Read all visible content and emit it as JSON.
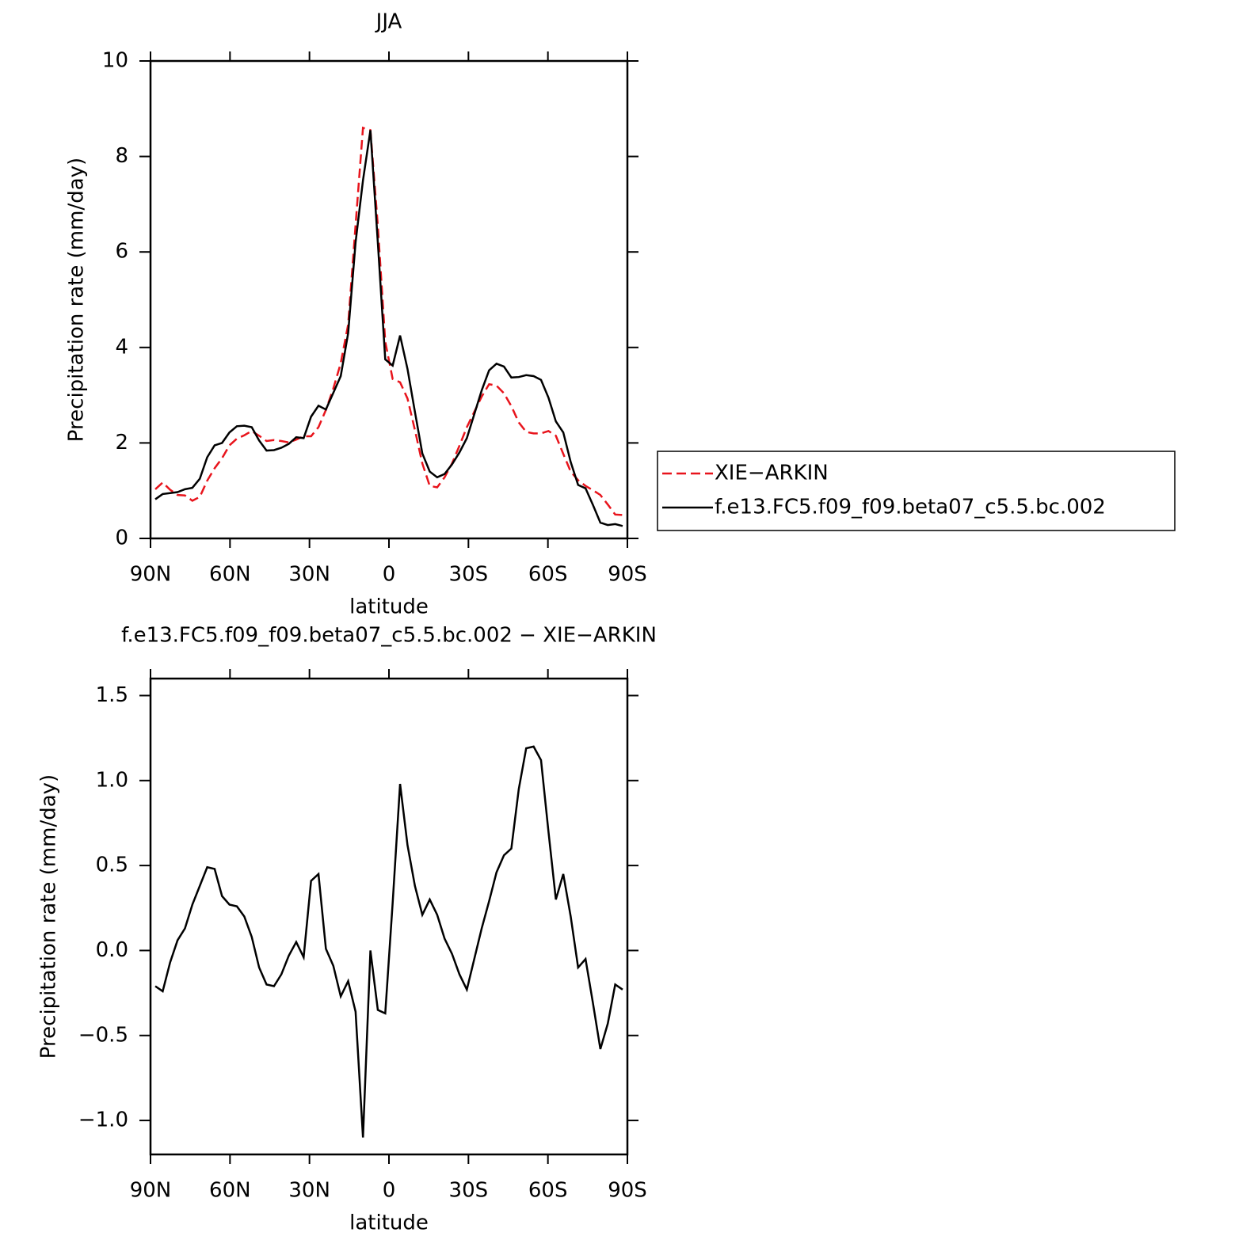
{
  "chart_data": [
    {
      "type": "line",
      "title": "JJA",
      "xlabel": "latitude",
      "ylabel": "Precipitation rate (mm/day)",
      "x": [
        88.2,
        85.4,
        82.6,
        79.8,
        77.0,
        74.2,
        71.4,
        68.6,
        65.8,
        63.0,
        60.2,
        57.4,
        54.6,
        51.8,
        49.0,
        46.2,
        43.4,
        40.6,
        37.8,
        35.0,
        32.2,
        29.4,
        26.6,
        23.8,
        21.0,
        18.2,
        15.4,
        12.6,
        9.8,
        7.0,
        4.2,
        1.4,
        -1.4,
        -4.2,
        -7.0,
        -9.8,
        -12.6,
        -15.4,
        -18.2,
        -21.0,
        -23.8,
        -26.6,
        -29.4,
        -32.2,
        -35.0,
        -37.8,
        -40.6,
        -43.4,
        -46.2,
        -49.0,
        -51.8,
        -54.6,
        -57.4,
        -60.2,
        -63.0,
        -65.8,
        -68.6,
        -71.4,
        -74.2,
        -77.0,
        -79.8,
        -82.6,
        -85.4,
        -88.2
      ],
      "series": [
        {
          "name": "XIE−ARKIN",
          "color": "#e8141c",
          "linestyle": "dashed",
          "values": [
            1.03,
            1.17,
            1.02,
            0.91,
            0.9,
            0.79,
            0.87,
            1.21,
            1.47,
            1.68,
            1.95,
            2.09,
            2.16,
            2.25,
            2.15,
            2.04,
            2.06,
            2.04,
            2.01,
            2.07,
            2.14,
            2.14,
            2.33,
            2.69,
            3.14,
            3.67,
            4.48,
            6.56,
            8.6,
            8.55,
            6.55,
            4.12,
            3.34,
            3.27,
            2.93,
            2.27,
            1.57,
            1.1,
            1.07,
            1.28,
            1.57,
            1.94,
            2.33,
            2.65,
            2.97,
            3.23,
            3.2,
            3.04,
            2.77,
            2.43,
            2.23,
            2.2,
            2.2,
            2.25,
            2.15,
            1.77,
            1.4,
            1.22,
            1.1,
            1.01,
            0.91,
            0.71,
            0.5,
            0.49
          ]
        },
        {
          "name": "f.e13.FC5.f09_f09.beta07_c5.5.bc.002",
          "color": "#000000",
          "linestyle": "solid",
          "values": [
            0.82,
            0.93,
            0.95,
            0.97,
            1.03,
            1.06,
            1.25,
            1.7,
            1.95,
            2.0,
            2.22,
            2.35,
            2.36,
            2.33,
            2.05,
            1.84,
            1.85,
            1.9,
            1.98,
            2.12,
            2.1,
            2.55,
            2.78,
            2.7,
            3.05,
            3.4,
            4.3,
            6.2,
            7.5,
            8.55,
            6.2,
            3.75,
            3.62,
            4.25,
            3.55,
            2.65,
            1.78,
            1.4,
            1.28,
            1.35,
            1.55,
            1.8,
            2.1,
            2.6,
            3.1,
            3.52,
            3.66,
            3.6,
            3.37,
            3.38,
            3.42,
            3.4,
            3.32,
            2.95,
            2.45,
            2.22,
            1.6,
            1.12,
            1.05,
            0.7,
            0.33,
            0.28,
            0.3,
            0.26
          ]
        }
      ],
      "xlim": [
        90,
        -90
      ],
      "xticks": [
        {
          "value": 90,
          "label": "90N"
        },
        {
          "value": 60,
          "label": "60N"
        },
        {
          "value": 30,
          "label": "30N"
        },
        0,
        {
          "value": -30,
          "label": "30S"
        },
        {
          "value": -60,
          "label": "60S"
        },
        {
          "value": -90,
          "label": "90S"
        }
      ],
      "ylim": [
        0,
        10
      ],
      "yticks": [
        0,
        2,
        4,
        6,
        8,
        10
      ],
      "legend": "right"
    },
    {
      "type": "line",
      "title": "f.e13.FC5.f09_f09.beta07_c5.5.bc.002 − XIE−ARKIN",
      "xlabel": "latitude",
      "ylabel": "Precipitation rate (mm/day)",
      "x": [
        88.2,
        85.4,
        82.6,
        79.8,
        77.0,
        74.2,
        71.4,
        68.6,
        65.8,
        63.0,
        60.2,
        57.4,
        54.6,
        51.8,
        49.0,
        46.2,
        43.4,
        40.6,
        37.8,
        35.0,
        32.2,
        29.4,
        26.6,
        23.8,
        21.0,
        18.2,
        15.4,
        12.6,
        9.8,
        7.0,
        4.2,
        1.4,
        -1.4,
        -4.2,
        -7.0,
        -9.8,
        -12.6,
        -15.4,
        -18.2,
        -21.0,
        -23.8,
        -26.6,
        -29.4,
        -32.2,
        -35.0,
        -37.8,
        -40.6,
        -43.4,
        -46.2,
        -49.0,
        -51.8,
        -54.6,
        -57.4,
        -60.2,
        -63.0,
        -65.8,
        -68.6,
        -71.4,
        -74.2,
        -77.0,
        -79.8,
        -82.6,
        -85.4,
        -88.2
      ],
      "color": "#000000",
      "values": [
        -0.21,
        -0.24,
        -0.07,
        0.06,
        0.13,
        0.27,
        0.38,
        0.49,
        0.48,
        0.32,
        0.27,
        0.26,
        0.2,
        0.08,
        -0.1,
        -0.2,
        -0.21,
        -0.14,
        -0.03,
        0.05,
        -0.04,
        0.41,
        0.45,
        0.01,
        -0.09,
        -0.27,
        -0.18,
        -0.36,
        -1.1,
        0.0,
        -0.35,
        -0.37,
        0.28,
        0.98,
        0.62,
        0.38,
        0.21,
        0.3,
        0.21,
        0.07,
        -0.02,
        -0.14,
        -0.23,
        -0.05,
        0.13,
        0.29,
        0.46,
        0.56,
        0.6,
        0.95,
        1.19,
        1.2,
        1.12,
        0.7,
        0.3,
        0.45,
        0.2,
        -0.1,
        -0.05,
        -0.31,
        -0.58,
        -0.43,
        -0.2,
        -0.23
      ],
      "xlim": [
        90,
        -90
      ],
      "xticks": [
        {
          "value": 90,
          "label": "90N"
        },
        {
          "value": 60,
          "label": "60N"
        },
        {
          "value": 30,
          "label": "30N"
        },
        0,
        {
          "value": -30,
          "label": "30S"
        },
        {
          "value": -60,
          "label": "60S"
        },
        {
          "value": -90,
          "label": "90S"
        }
      ],
      "ylim": [
        -1.2,
        1.6
      ],
      "yticks": [
        {
          "value": 1.5,
          "label": "1.5"
        },
        {
          "value": 1.0,
          "label": "1.0"
        },
        {
          "value": 0.5,
          "label": "0.5"
        },
        {
          "value": 0.0,
          "label": "0.0"
        },
        {
          "value": -0.5,
          "label": "−0.5"
        },
        {
          "value": -1.0,
          "label": "−1.0"
        }
      ]
    }
  ]
}
